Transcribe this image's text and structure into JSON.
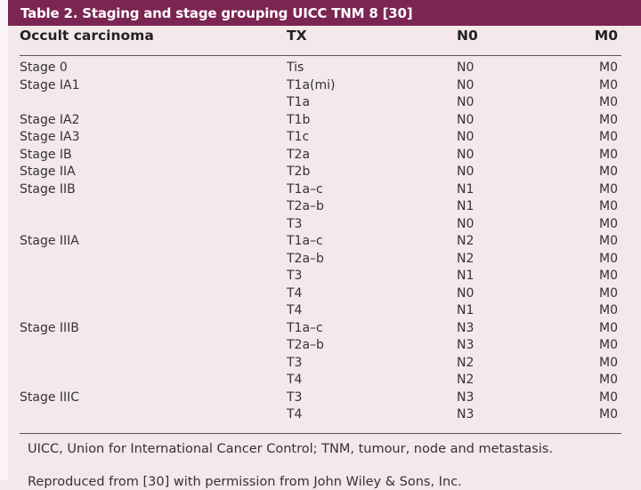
{
  "title": "Table 2. Staging and stage grouping UICC TNM 8 [30]",
  "header": [
    "Occult carcinoma",
    "TX",
    "N0",
    "M0"
  ],
  "rows": [
    [
      "Stage 0",
      "Tis",
      "N0",
      "M0"
    ],
    [
      "Stage IA1",
      "T1a(mi)",
      "N0",
      "M0"
    ],
    [
      "",
      "T1a",
      "N0",
      "M0"
    ],
    [
      "Stage IA2",
      "T1b",
      "N0",
      "M0"
    ],
    [
      "Stage IA3",
      "T1c",
      "N0",
      "M0"
    ],
    [
      "Stage IB",
      "T2a",
      "N0",
      "M0"
    ],
    [
      "Stage IIA",
      "T2b",
      "N0",
      "M0"
    ],
    [
      "Stage IIB",
      "T1a–c",
      "N1",
      "M0"
    ],
    [
      "",
      "T2a–b",
      "N1",
      "M0"
    ],
    [
      "",
      "T3",
      "N0",
      "M0"
    ],
    [
      "Stage IIIA",
      "T1a–c",
      "N2",
      "M0"
    ],
    [
      "",
      "T2a–b",
      "N2",
      "M0"
    ],
    [
      "",
      "T3",
      "N1",
      "M0"
    ],
    [
      "",
      "T4",
      "N0",
      "M0"
    ],
    [
      "",
      "T4",
      "N1",
      "M0"
    ],
    [
      "Stage IIIB",
      "T1a–c",
      "N3",
      "M0"
    ],
    [
      "",
      "T2a–b",
      "N3",
      "M0"
    ],
    [
      "",
      "T3",
      "N2",
      "M0"
    ],
    [
      "",
      "T4",
      "N2",
      "M0"
    ],
    [
      "Stage IIIC",
      "T3",
      "N3",
      "M0"
    ],
    [
      "",
      "T4",
      "N3",
      "M0"
    ]
  ],
  "footnotes": [
    "UICC, Union for International Cancer Control; TNM, tumour, node and metastasis.",
    "Reproduced from [30] with permission from John Wiley & Sons, Inc."
  ],
  "colors": {
    "title_bar": "#7b2552",
    "background": "#f4e8eb"
  }
}
